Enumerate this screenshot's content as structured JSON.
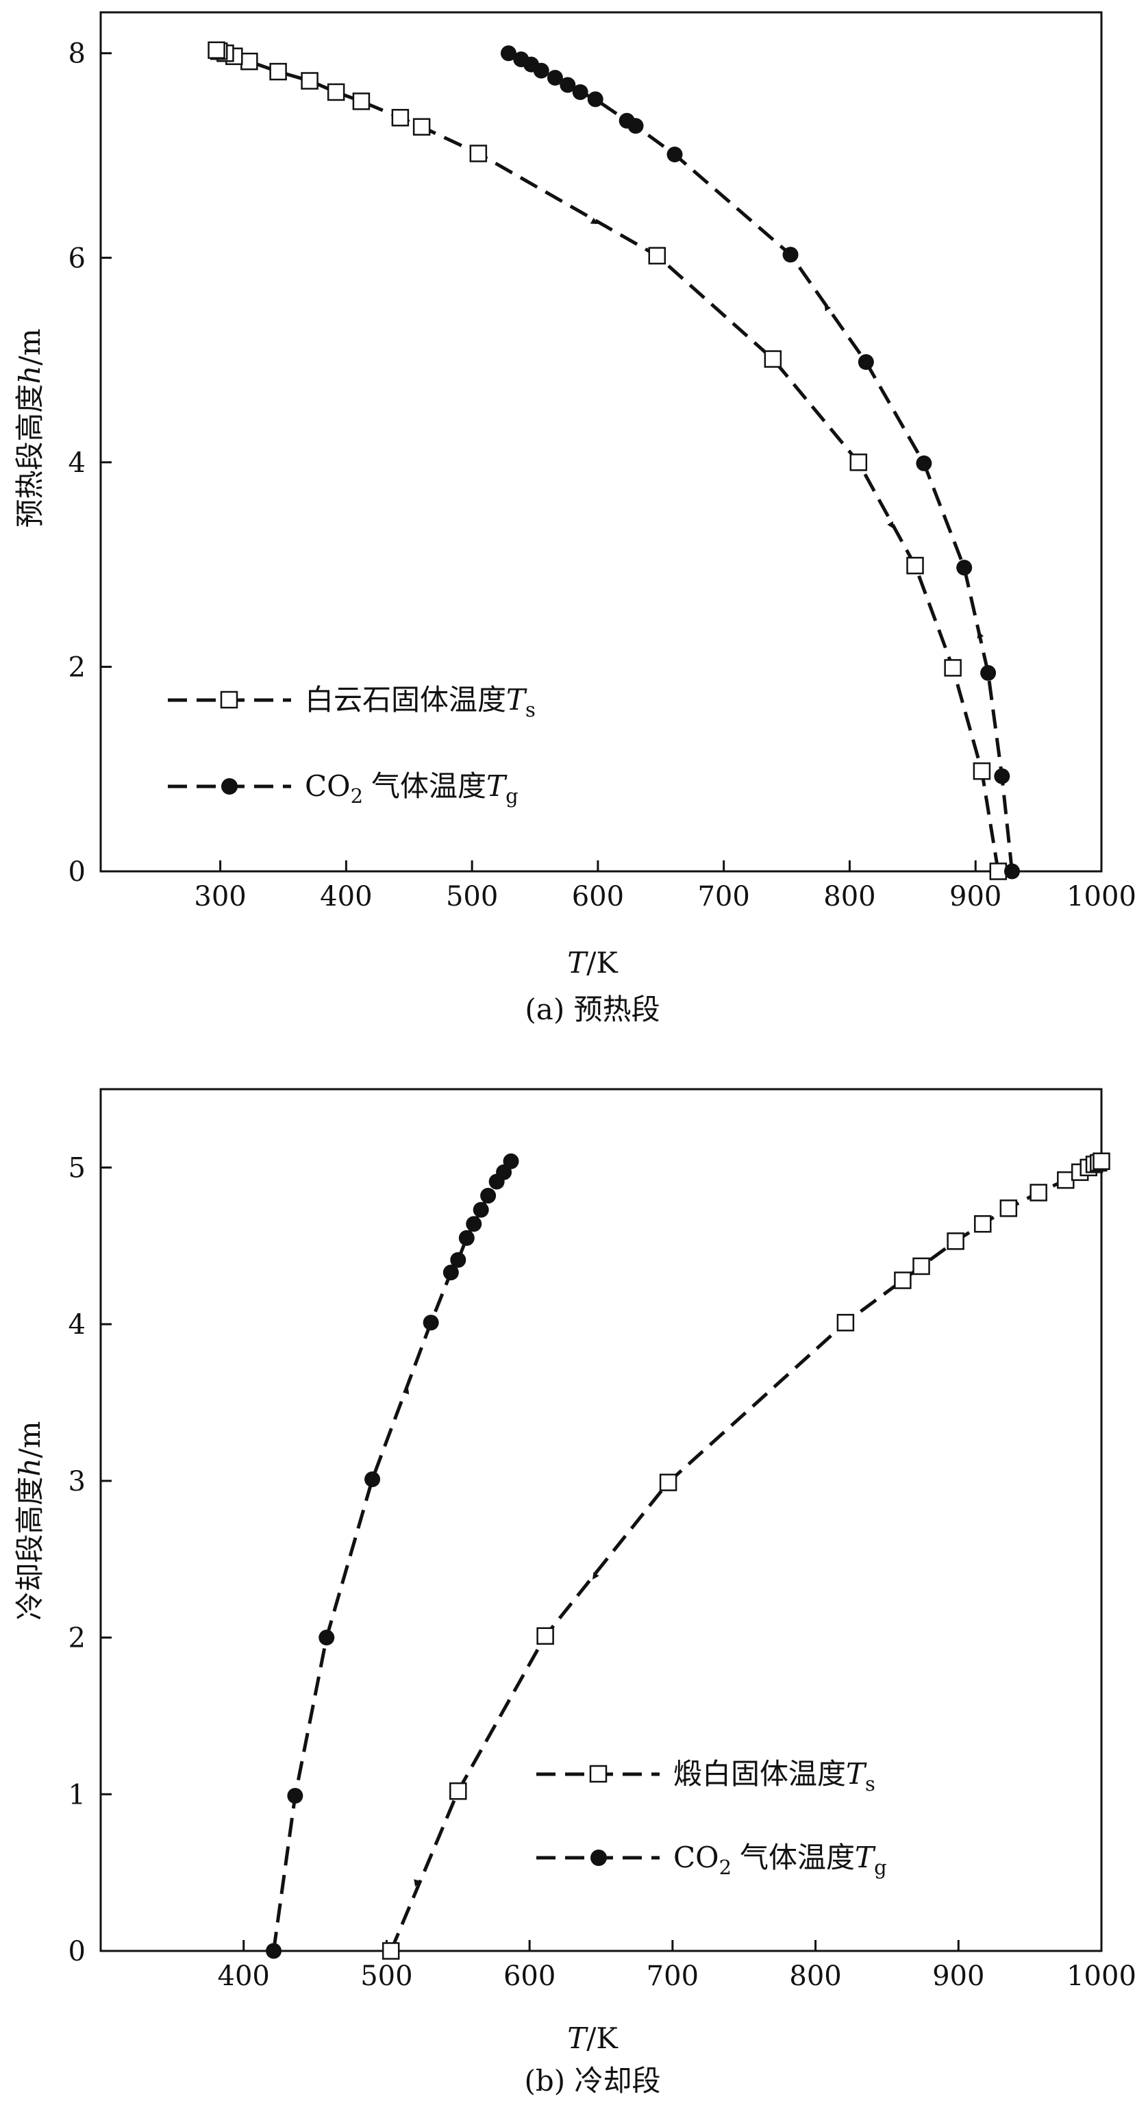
{
  "chart_data": [
    {
      "type": "line",
      "caption": "(a) 预热段",
      "xlabel": "T/K",
      "xlabel_var": "T",
      "xlabel_unit": "/K",
      "ylabel": "预热段高度h/m",
      "ylabel_prefix": "预热段高度",
      "ylabel_var": "h",
      "ylabel_unit": "/m",
      "xlim": [
        205,
        1000
      ],
      "ylim": [
        0,
        8.4
      ],
      "xticks": [
        300,
        400,
        500,
        600,
        700,
        800,
        900,
        1000
      ],
      "yticks": [
        0,
        2,
        4,
        6,
        8
      ],
      "grid": false,
      "legend_position": "bottom-left",
      "series": [
        {
          "name": "白云石固体温度Ts",
          "name_text": "白云石固体温度",
          "name_var": "T",
          "name_sub": "s",
          "marker": "open-square",
          "points": [
            [
              918,
              0.0
            ],
            [
              905,
              0.98
            ],
            [
              882,
              1.99
            ],
            [
              852,
              2.99
            ],
            [
              807,
              4.0
            ],
            [
              739,
              5.01
            ],
            [
              647,
              6.02
            ],
            [
              505,
              7.02
            ],
            [
              460,
              7.28
            ],
            [
              443,
              7.37
            ],
            [
              412,
              7.53
            ],
            [
              392,
              7.62
            ],
            [
              371,
              7.73
            ],
            [
              346,
              7.82
            ],
            [
              323,
              7.92
            ],
            [
              311,
              7.97
            ],
            [
              304,
              8.0
            ],
            [
              299,
              8.02
            ],
            [
              297,
              8.03
            ]
          ],
          "arrows": [
            {
              "at": [
                590,
                6.4
              ],
              "toward": [
                600,
                6.33
              ]
            },
            {
              "at": [
                830,
                3.45
              ],
              "toward": [
                835,
                3.35
              ]
            }
          ]
        },
        {
          "name": "CO2气体温度Tg",
          "name_text": "CO",
          "name_sub1": "2",
          "name_text2": "气体温度",
          "name_var": "T",
          "name_sub": "g",
          "marker": "filled-circle",
          "points": [
            [
              929,
              0.0
            ],
            [
              921,
              0.93
            ],
            [
              910,
              1.94
            ],
            [
              891,
              2.97
            ],
            [
              859,
              3.99
            ],
            [
              813,
              4.98
            ],
            [
              753,
              6.03
            ],
            [
              661,
              7.01
            ],
            [
              630,
              7.29
            ],
            [
              623,
              7.34
            ],
            [
              598,
              7.55
            ],
            [
              586,
              7.62
            ],
            [
              576,
              7.69
            ],
            [
              566,
              7.76
            ],
            [
              555,
              7.83
            ],
            [
              547,
              7.89
            ],
            [
              539,
              7.94
            ],
            [
              529,
              8.0
            ]
          ],
          "arrows": [
            {
              "at": [
                785,
                5.45
              ],
              "toward": [
                780,
                5.55
              ]
            },
            {
              "at": [
                905,
                2.25
              ],
              "toward": [
                902,
                2.35
              ]
            }
          ]
        }
      ]
    },
    {
      "type": "line",
      "caption": "(b) 冷却段",
      "xlabel": "T/K",
      "xlabel_var": "T",
      "xlabel_unit": "/K",
      "ylabel": "冷却段高度h/m",
      "ylabel_prefix": "冷却段高度",
      "ylabel_var": "h",
      "ylabel_unit": "/m",
      "xlim": [
        300,
        1000
      ],
      "ylim": [
        0,
        5.5
      ],
      "xticks": [
        400,
        500,
        600,
        700,
        800,
        900,
        1000
      ],
      "yticks": [
        0,
        1,
        2,
        3,
        4,
        5
      ],
      "grid": false,
      "legend_position": "bottom-right",
      "series": [
        {
          "name": "煅白固体温度Ts",
          "name_text": "煅白固体温度",
          "name_var": "T",
          "name_sub": "s",
          "marker": "open-square",
          "points": [
            [
              503,
              0.0
            ],
            [
              550,
              1.02
            ],
            [
              611,
              2.01
            ],
            [
              697,
              2.99
            ],
            [
              821,
              4.01
            ],
            [
              861,
              4.28
            ],
            [
              874,
              4.37
            ],
            [
              898,
              4.53
            ],
            [
              917,
              4.64
            ],
            [
              935,
              4.74
            ],
            [
              956,
              4.84
            ],
            [
              975,
              4.92
            ],
            [
              985,
              4.97
            ],
            [
              991,
              5.0
            ],
            [
              995,
              5.02
            ],
            [
              998,
              5.03
            ],
            [
              1000,
              5.04
            ]
          ],
          "arrows": [
            {
              "at": [
                650,
                2.45
              ],
              "toward": [
                644,
                2.37
              ]
            },
            {
              "at": [
                523,
                0.5
              ],
              "toward": [
                520,
                0.41
              ]
            }
          ]
        },
        {
          "name": "CO2气体温度Tg",
          "name_text": "CO",
          "name_sub1": "2",
          "name_text2": "气体温度",
          "name_var": "T",
          "name_sub": "g",
          "marker": "filled-circle",
          "points": [
            [
              421,
              0.0
            ],
            [
              436,
              0.99
            ],
            [
              458,
              2.0
            ],
            [
              490,
              3.01
            ],
            [
              531,
              4.01
            ],
            [
              545,
              4.33
            ],
            [
              550,
              4.41
            ],
            [
              556,
              4.55
            ],
            [
              561,
              4.64
            ],
            [
              566,
              4.73
            ],
            [
              571,
              4.82
            ],
            [
              577,
              4.91
            ],
            [
              582,
              4.97
            ],
            [
              587,
              5.04
            ]
          ],
          "arrows": [
            {
              "at": [
                512,
                3.52
              ],
              "toward": [
                515,
                3.6
              ]
            }
          ]
        }
      ]
    }
  ]
}
